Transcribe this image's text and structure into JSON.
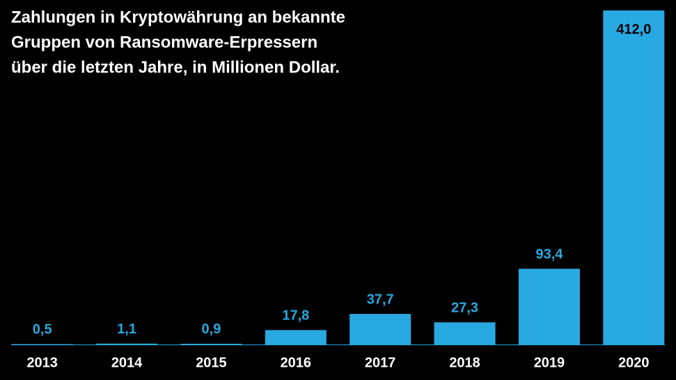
{
  "chart_data": {
    "type": "bar",
    "title": [
      "Zahlungen in Kryptowährung an bekannte",
      "Gruppen von Ransomware-Erpressern",
      "über die letzten Jahre, in Millionen Dollar."
    ],
    "categories": [
      "2013",
      "2014",
      "2015",
      "2016",
      "2017",
      "2018",
      "2019",
      "2020"
    ],
    "values": [
      0.5,
      1.1,
      0.9,
      17.8,
      37.7,
      27.3,
      93.4,
      412.0
    ],
    "value_labels": [
      "0,5",
      "1,1",
      "0,9",
      "17,8",
      "37,7",
      "27,3",
      "93,4",
      "412,0"
    ],
    "color": "#29a9e1"
  }
}
